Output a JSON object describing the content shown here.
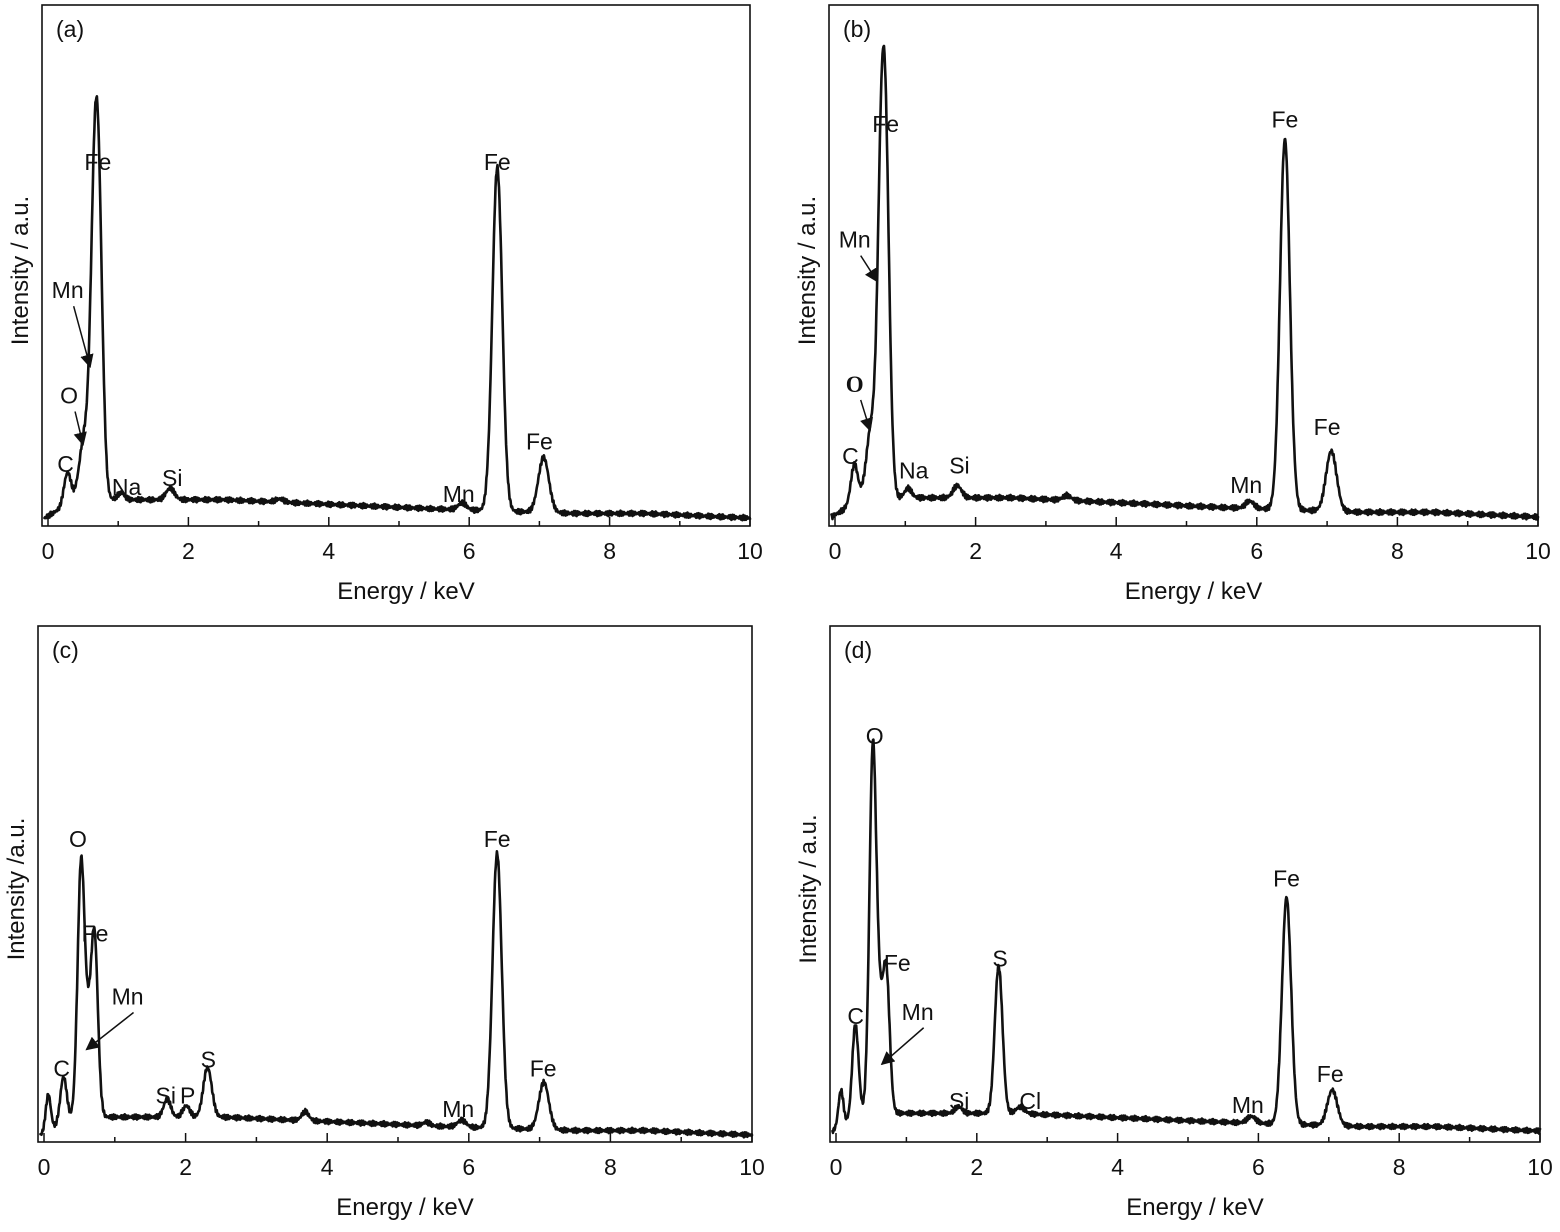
{
  "chart_data": [
    {
      "type": "line",
      "panel_label": "(a)",
      "xlabel": "Energy / keV",
      "ylabel": "Intensity / a.u.",
      "xlim": [
        0,
        10
      ],
      "xticks": [
        0,
        2,
        4,
        6,
        8,
        10
      ],
      "ylim": [
        0,
        100
      ],
      "grid": false,
      "baseline": [
        [
          -0.05,
          0
        ],
        [
          0.4,
          4
        ],
        [
          1.2,
          4
        ],
        [
          2.5,
          4
        ],
        [
          4,
          3
        ],
        [
          5.5,
          2
        ],
        [
          7.5,
          1
        ],
        [
          8.5,
          1
        ],
        [
          10,
          0
        ]
      ],
      "peaks": [
        {
          "label": "C",
          "x": 0.277,
          "y": 7,
          "w": 0.05
        },
        {
          "label": "O",
          "x": 0.52,
          "y": 14,
          "w": 0.07
        },
        {
          "label": "Mn",
          "x": 0.64,
          "y": 30,
          "w": 0.05
        },
        {
          "label": "Fe",
          "x": 0.71,
          "y": 73,
          "w": 0.06
        },
        {
          "label": "Na",
          "x": 1.04,
          "y": 1.5,
          "w": 0.05
        },
        {
          "label": "Si",
          "x": 1.74,
          "y": 2.5,
          "w": 0.06
        },
        {
          "label": "",
          "x": 3.3,
          "y": 0.7,
          "w": 0.06
        },
        {
          "label": "Mn",
          "x": 5.9,
          "y": 1.5,
          "w": 0.06
        },
        {
          "label": "Fe",
          "x": 6.4,
          "y": 75,
          "w": 0.07
        },
        {
          "label": "Fe",
          "x": 7.06,
          "y": 12,
          "w": 0.075
        }
      ],
      "annotations": [
        {
          "text": "Fe",
          "x": 0.71,
          "y": 76,
          "anchor": "middle"
        },
        {
          "text": "Mn",
          "x": 0.28,
          "y": 48,
          "anchor": "middle",
          "arrow_to": [
            0.6,
            33
          ]
        },
        {
          "text": "O",
          "x": 0.3,
          "y": 25,
          "anchor": "middle",
          "arrow_to": [
            0.5,
            16
          ]
        },
        {
          "text": "C",
          "x": 0.25,
          "y": 10,
          "anchor": "middle"
        },
        {
          "text": "Na",
          "x": 1.12,
          "y": 5,
          "anchor": "middle"
        },
        {
          "text": "Si",
          "x": 1.77,
          "y": 7,
          "anchor": "middle"
        },
        {
          "text": "Mn",
          "x": 5.85,
          "y": 3.5,
          "anchor": "middle"
        },
        {
          "text": "Fe",
          "x": 6.4,
          "y": 76,
          "anchor": "middle"
        },
        {
          "text": "Fe",
          "x": 7.0,
          "y": 15,
          "anchor": "middle"
        }
      ]
    },
    {
      "type": "line",
      "panel_label": "(b)",
      "xlabel": "Energy / keV",
      "ylabel": "Intensity / a.u.",
      "xlim": [
        0,
        10
      ],
      "xticks": [
        0,
        2,
        4,
        6,
        8,
        10
      ],
      "ylim": [
        0,
        100
      ],
      "grid": false,
      "baseline": [
        [
          -0.05,
          0
        ],
        [
          0.4,
          4
        ],
        [
          1.2,
          4
        ],
        [
          2.5,
          4
        ],
        [
          4,
          3
        ],
        [
          5.5,
          2
        ],
        [
          7.5,
          1
        ],
        [
          8.5,
          1
        ],
        [
          10,
          0
        ]
      ],
      "peaks": [
        {
          "label": "C",
          "x": 0.275,
          "y": 8,
          "w": 0.05
        },
        {
          "label": "O",
          "x": 0.52,
          "y": 15,
          "w": 0.07
        },
        {
          "label": "Mn",
          "x": 0.64,
          "y": 32,
          "w": 0.05
        },
        {
          "label": "Fe",
          "x": 0.71,
          "y": 78,
          "w": 0.06
        },
        {
          "label": "Na",
          "x": 1.04,
          "y": 2,
          "w": 0.05
        },
        {
          "label": "Si",
          "x": 1.74,
          "y": 2.5,
          "w": 0.06
        },
        {
          "label": "",
          "x": 3.3,
          "y": 1,
          "w": 0.06
        },
        {
          "label": "Mn",
          "x": 5.9,
          "y": 1.5,
          "w": 0.06
        },
        {
          "label": "Fe",
          "x": 6.4,
          "y": 77,
          "w": 0.07
        },
        {
          "label": "Fe",
          "x": 7.06,
          "y": 12.5,
          "w": 0.075
        }
      ],
      "annotations": [
        {
          "text": "Fe",
          "x": 0.72,
          "y": 80,
          "anchor": "middle"
        },
        {
          "text": "Mn",
          "x": 0.28,
          "y": 56,
          "anchor": "middle",
          "arrow_to": [
            0.6,
            49
          ]
        },
        {
          "text": "O",
          "x": 0.28,
          "y": 26,
          "anchor": "middle",
          "arrow_to": [
            0.5,
            18
          ],
          "style": "serif"
        },
        {
          "text": "C",
          "x": 0.22,
          "y": 11,
          "anchor": "middle"
        },
        {
          "text": "Na",
          "x": 1.12,
          "y": 8,
          "anchor": "middle"
        },
        {
          "text": "Si",
          "x": 1.77,
          "y": 9,
          "anchor": "middle"
        },
        {
          "text": "Mn",
          "x": 5.85,
          "y": 5,
          "anchor": "middle"
        },
        {
          "text": "Fe",
          "x": 6.4,
          "y": 81,
          "anchor": "middle"
        },
        {
          "text": "Fe",
          "x": 7.0,
          "y": 17,
          "anchor": "middle"
        }
      ]
    },
    {
      "type": "line",
      "panel_label": "(c)",
      "xlabel": "Energy / keV",
      "ylabel": "Intensity /a.u.",
      "xlim": [
        0,
        10
      ],
      "xticks": [
        0,
        2,
        4,
        6,
        8,
        10
      ],
      "ylim": [
        0,
        100
      ],
      "grid": false,
      "baseline": [
        [
          -0.05,
          0
        ],
        [
          0.4,
          4
        ],
        [
          1.2,
          4
        ],
        [
          2.5,
          4
        ],
        [
          4,
          3
        ],
        [
          5.5,
          2
        ],
        [
          7.5,
          1
        ],
        [
          8.5,
          1
        ],
        [
          10,
          0
        ]
      ],
      "peaks": [
        {
          "label": "",
          "x": 0.06,
          "y": 8,
          "w": 0.035
        },
        {
          "label": "C",
          "x": 0.275,
          "y": 10,
          "w": 0.045
        },
        {
          "label": "O",
          "x": 0.525,
          "y": 57,
          "w": 0.05
        },
        {
          "label": "Mn",
          "x": 0.62,
          "y": 12,
          "w": 0.04
        },
        {
          "label": "Fe",
          "x": 0.71,
          "y": 41,
          "w": 0.05
        },
        {
          "label": "Si",
          "x": 1.74,
          "y": 4,
          "w": 0.05
        },
        {
          "label": "P",
          "x": 2.01,
          "y": 2.5,
          "w": 0.05
        },
        {
          "label": "S",
          "x": 2.31,
          "y": 11,
          "w": 0.06
        },
        {
          "label": "",
          "x": 3.69,
          "y": 2,
          "w": 0.05
        },
        {
          "label": "",
          "x": 5.4,
          "y": 0.8,
          "w": 0.05
        },
        {
          "label": "Mn",
          "x": 5.9,
          "y": 1.5,
          "w": 0.06
        },
        {
          "label": "Fe",
          "x": 6.4,
          "y": 61,
          "w": 0.065
        },
        {
          "label": "Fe",
          "x": 7.06,
          "y": 10.5,
          "w": 0.07
        }
      ],
      "annotations": [
        {
          "text": "O",
          "x": 0.48,
          "y": 64,
          "anchor": "middle"
        },
        {
          "text": "Fe",
          "x": 0.72,
          "y": 43,
          "anchor": "middle"
        },
        {
          "text": "Mn",
          "x": 1.18,
          "y": 29,
          "anchor": "middle",
          "arrow_to": [
            0.6,
            19
          ]
        },
        {
          "text": "C",
          "x": 0.25,
          "y": 13,
          "anchor": "middle"
        },
        {
          "text": "Si",
          "x": 1.72,
          "y": 7,
          "anchor": "middle"
        },
        {
          "text": "P",
          "x": 2.03,
          "y": 7,
          "anchor": "middle"
        },
        {
          "text": "S",
          "x": 2.32,
          "y": 15,
          "anchor": "middle"
        },
        {
          "text": "Mn",
          "x": 5.85,
          "y": 4,
          "anchor": "middle"
        },
        {
          "text": "Fe",
          "x": 6.4,
          "y": 64,
          "anchor": "middle"
        },
        {
          "text": "Fe",
          "x": 7.05,
          "y": 13,
          "anchor": "middle"
        }
      ]
    },
    {
      "type": "line",
      "panel_label": "(d)",
      "xlabel": "Energy / keV",
      "ylabel": "Intensity / a.u.",
      "xlim": [
        0,
        10
      ],
      "xticks": [
        0,
        2,
        4,
        6,
        8,
        10
      ],
      "ylim": [
        0,
        100
      ],
      "grid": false,
      "baseline": [
        [
          -0.05,
          0
        ],
        [
          0.4,
          4
        ],
        [
          1.2,
          4
        ],
        [
          2.5,
          4
        ],
        [
          4,
          3
        ],
        [
          5.5,
          2
        ],
        [
          7.5,
          1
        ],
        [
          8.5,
          1
        ],
        [
          10,
          0
        ]
      ],
      "peaks": [
        {
          "label": "",
          "x": 0.07,
          "y": 8,
          "w": 0.035
        },
        {
          "label": "C",
          "x": 0.275,
          "y": 21,
          "w": 0.045
        },
        {
          "label": "O",
          "x": 0.525,
          "y": 83,
          "w": 0.05
        },
        {
          "label": "Mn",
          "x": 0.62,
          "y": 14,
          "w": 0.04
        },
        {
          "label": "Fe",
          "x": 0.71,
          "y": 33,
          "w": 0.05
        },
        {
          "label": "Si",
          "x": 1.74,
          "y": 1.5,
          "w": 0.05
        },
        {
          "label": "S",
          "x": 2.31,
          "y": 33,
          "w": 0.055
        },
        {
          "label": "Cl",
          "x": 2.62,
          "y": 1.5,
          "w": 0.06
        },
        {
          "label": "Mn",
          "x": 5.9,
          "y": 1.5,
          "w": 0.06
        },
        {
          "label": "Fe",
          "x": 6.4,
          "y": 51,
          "w": 0.065
        },
        {
          "label": "Fe",
          "x": 7.05,
          "y": 8,
          "w": 0.07
        }
      ],
      "annotations": [
        {
          "text": "O",
          "x": 0.55,
          "y": 87,
          "anchor": "middle"
        },
        {
          "text": "C",
          "x": 0.28,
          "y": 24,
          "anchor": "middle"
        },
        {
          "text": "Fe",
          "x": 0.87,
          "y": 36,
          "anchor": "middle"
        },
        {
          "text": "Mn",
          "x": 1.16,
          "y": 25,
          "anchor": "middle",
          "arrow_to": [
            0.65,
            15
          ]
        },
        {
          "text": "Si",
          "x": 1.75,
          "y": 5,
          "anchor": "middle"
        },
        {
          "text": "S",
          "x": 2.33,
          "y": 37,
          "anchor": "middle"
        },
        {
          "text": "Cl",
          "x": 2.76,
          "y": 5,
          "anchor": "middle"
        },
        {
          "text": "Mn",
          "x": 5.85,
          "y": 4,
          "anchor": "middle"
        },
        {
          "text": "Fe",
          "x": 6.4,
          "y": 55,
          "anchor": "middle"
        },
        {
          "text": "Fe",
          "x": 7.02,
          "y": 11,
          "anchor": "middle"
        }
      ]
    }
  ]
}
